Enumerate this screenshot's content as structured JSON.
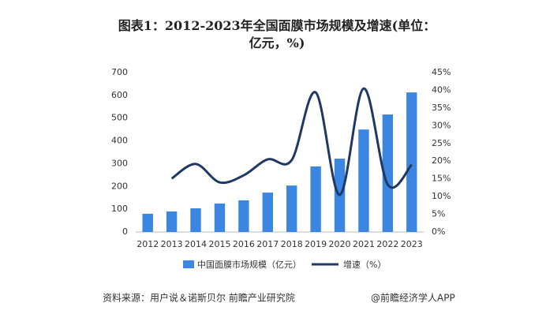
{
  "chart_data": {
    "type": "bar-line",
    "title": "图表1：2012-2023年全国面膜市场规模及增速(单位：亿元，%)",
    "categories": [
      "2012",
      "2013",
      "2014",
      "2015",
      "2016",
      "2017",
      "2018",
      "2019",
      "2020",
      "2021",
      "2022",
      "2023"
    ],
    "series": [
      {
        "name": "中国面膜市场规模（亿元）",
        "type": "bar",
        "color": "#3a86e0",
        "values": [
          80,
          90,
          104,
          125,
          139,
          173,
          204,
          288,
          322,
          450,
          516,
          613
        ]
      },
      {
        "name": "增速（%）",
        "type": "line",
        "axis": "y2",
        "color": "#1f3864",
        "values": [
          null,
          15.1,
          19.2,
          14,
          16,
          20.5,
          20.3,
          39.4,
          10.5,
          40.5,
          13.4,
          19
        ]
      }
    ],
    "ylim": [
      0,
      700
    ],
    "yticks": [
      0,
      100,
      200,
      300,
      400,
      500,
      600,
      700
    ],
    "y2lim": [
      0,
      45
    ],
    "y2ticks": [
      {
        "value": 0,
        "label": "0%"
      },
      {
        "value": 5,
        "label": "5%"
      },
      {
        "value": 10,
        "label": "10%"
      },
      {
        "value": 15,
        "label": "15%"
      },
      {
        "value": 20,
        "label": "20%"
      },
      {
        "value": 25,
        "label": "25%"
      },
      {
        "value": 30,
        "label": "30%"
      },
      {
        "value": 35,
        "label": "35%"
      },
      {
        "value": 40,
        "label": "40%"
      },
      {
        "value": 45,
        "label": "45%"
      }
    ],
    "source": "资料来源：用户说＆诺斯贝尔 前瞻产业研究院",
    "credit": "@前瞻经济学人APP"
  }
}
